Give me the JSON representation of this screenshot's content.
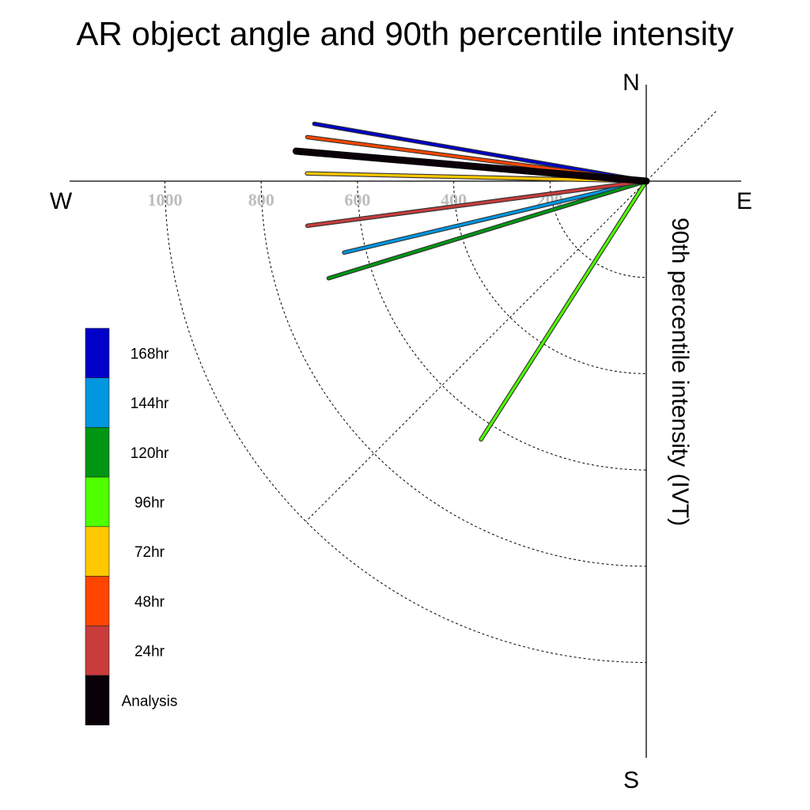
{
  "chart_data": {
    "type": "polar-line",
    "title": "AR object angle and 90th percentile intensity",
    "ylabel": "90th percentile intensity (IVT)",
    "directions": {
      "north": "N",
      "south": "S",
      "east": "E",
      "west": "W"
    },
    "radial_ticks": [
      "200",
      "400",
      "600",
      "800",
      "1000"
    ],
    "radial_tick_values": [
      200,
      400,
      600,
      800,
      1000
    ],
    "rlim": [
      0,
      1000
    ],
    "series": [
      {
        "name": "168hr",
        "color": "#0000c8",
        "angle_deg": 170.2,
        "intensity": 700
      },
      {
        "name": "144hr",
        "color": "#0096e0",
        "angle_deg": 193.3,
        "intensity": 645
      },
      {
        "name": "120hr",
        "color": "#009614",
        "angle_deg": 197.0,
        "intensity": 690
      },
      {
        "name": "96hr",
        "color": "#50ff00",
        "angle_deg": 237.4,
        "intensity": 637
      },
      {
        "name": "72hr",
        "color": "#ffc800",
        "angle_deg": 178.7,
        "intensity": 705
      },
      {
        "name": "48hr",
        "color": "#ff4600",
        "angle_deg": 172.6,
        "intensity": 710
      },
      {
        "name": "24hr",
        "color": "#c83c3c",
        "angle_deg": 187.5,
        "intensity": 710
      },
      {
        "name": "Analysis",
        "color": "#0a0008",
        "angle_deg": 175.1,
        "intensity": 730
      }
    ],
    "legend": [
      "168hr",
      "144hr",
      "120hr",
      "96hr",
      "72hr",
      "48hr",
      "24hr",
      "Analysis"
    ],
    "legend_placement": "left"
  }
}
